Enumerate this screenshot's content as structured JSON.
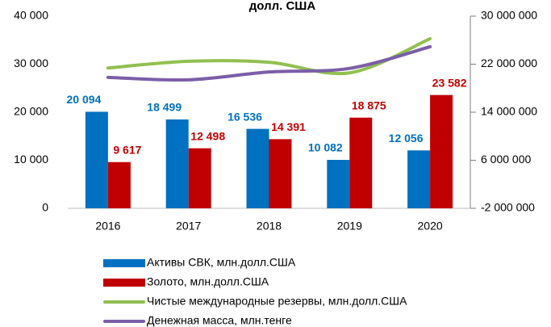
{
  "chart_data": {
    "type": "bar",
    "title": "долл. США",
    "categories": [
      "2016",
      "2017",
      "2018",
      "2019",
      "2020"
    ],
    "series": [
      {
        "name": "Активы СВК, млн.долл.США",
        "type": "bar",
        "color": "#0070c0",
        "values": [
          20094,
          18499,
          16536,
          10082,
          12056
        ],
        "value_labels": [
          "20 094",
          "18 499",
          "16 536",
          "10 082",
          "12 056"
        ]
      },
      {
        "name": "Золото, млн.долл.США",
        "type": "bar",
        "color": "#c00000",
        "values": [
          9617,
          12498,
          14391,
          18875,
          23582
        ],
        "value_labels": [
          "9 617",
          "12 498",
          "14 391",
          "18 875",
          "23 582"
        ]
      },
      {
        "name": "Чистые международные резервы, млн.долл.США",
        "type": "line",
        "color": "#92c050",
        "values": [
          29200,
          30600,
          30400,
          28200,
          35300
        ]
      },
      {
        "name": "Денежная масса, млн.тенге",
        "type": "line",
        "axis": "y2",
        "color": "#7b5ea7",
        "values": [
          19800000,
          19400000,
          20700000,
          21300000,
          24900000
        ]
      }
    ],
    "ylim": [
      0,
      40000
    ],
    "yticks": [
      0,
      {
        "value": 10000,
        "label": "10 000"
      },
      {
        "value": 20000,
        "label": "20 000"
      },
      {
        "value": 30000,
        "label": "30 000"
      },
      {
        "value": 40000,
        "label": "40 000"
      }
    ],
    "y2lim": [
      -2000000,
      30000000
    ],
    "y2ticks": [
      {
        "value": -2000000,
        "label": "-2 000 000"
      },
      {
        "value": 6000000,
        "label": "6 000 000"
      },
      {
        "value": 14000000,
        "label": "14 000 000"
      },
      {
        "value": 22000000,
        "label": "22 000 000"
      },
      {
        "value": 30000000,
        "label": "30 000 000"
      }
    ],
    "legend": "bottom"
  }
}
